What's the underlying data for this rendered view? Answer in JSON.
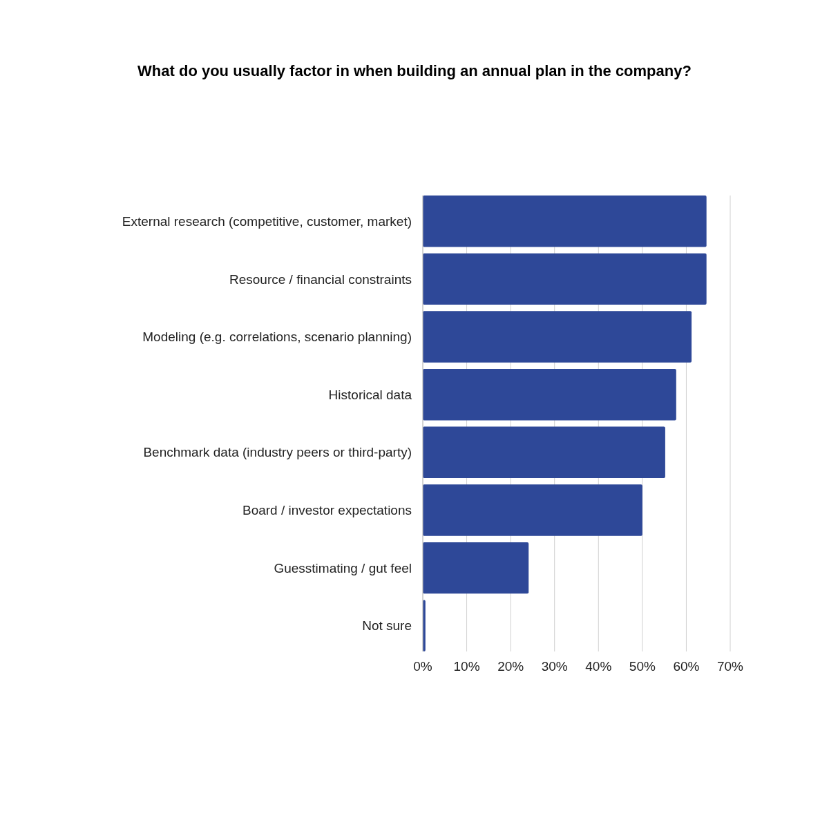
{
  "chart_data": {
    "type": "bar",
    "orientation": "horizontal",
    "title": "What do you usually factor in when building an annual plan in the company?",
    "categories": [
      "External research (competitive, customer, market)",
      "Resource / financial constraints",
      "Modeling (e.g. correlations, scenario planning)",
      "Historical data",
      "Benchmark data (industry peers or third-party)",
      "Board / investor expectations",
      "Guesstimating / gut feel",
      "Not sure"
    ],
    "values": [
      64.6,
      64.6,
      61.2,
      57.7,
      55.2,
      50.0,
      24.1,
      0.6
    ],
    "color": "#2e4898",
    "xlim": [
      0,
      70
    ],
    "xticks": [
      {
        "value": 0,
        "label": "0%"
      },
      {
        "value": 10,
        "label": "10%"
      },
      {
        "value": 20,
        "label": "20%"
      },
      {
        "value": 30,
        "label": "30%"
      },
      {
        "value": 40,
        "label": "40%"
      },
      {
        "value": 50,
        "label": "50%"
      },
      {
        "value": 60,
        "label": "60%"
      },
      {
        "value": 70,
        "label": "70%"
      }
    ],
    "grid": "x"
  }
}
